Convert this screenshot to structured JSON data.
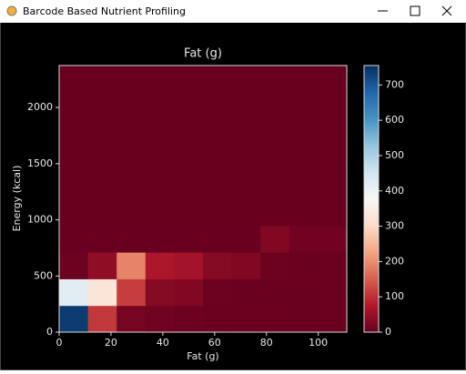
{
  "window": {
    "title": "Barcode Based Nutrient Profiling"
  },
  "chart_data": {
    "type": "heatmap",
    "title": "Fat (g)",
    "x_label": "Fat (g)",
    "y_label": "Energy (kcal)",
    "xbins": [
      0,
      11.1,
      22.2,
      33.3,
      44.4,
      55.5,
      66.6,
      77.7,
      88.8,
      99.9,
      111
    ],
    "ybins": [
      0,
      237.4,
      474.8,
      712.2,
      949.6,
      1187,
      1424.4,
      1661.8,
      1899.2,
      2136.6,
      2374
    ],
    "z": [
      [
        740,
        110,
        15,
        8,
        5,
        3,
        3,
        3,
        2,
        2
      ],
      [
        420,
        330,
        115,
        30,
        25,
        5,
        3,
        2,
        2,
        2
      ],
      [
        5,
        40,
        190,
        70,
        60,
        30,
        25,
        5,
        3,
        2
      ],
      [
        1,
        1,
        1,
        1,
        1,
        1,
        1,
        25,
        10,
        10
      ],
      [
        0,
        0,
        0,
        0,
        0,
        0,
        0,
        0,
        0,
        0
      ],
      [
        0,
        0,
        0,
        0,
        0,
        0,
        0,
        0,
        0,
        0
      ],
      [
        0,
        0,
        0,
        0,
        0,
        0,
        0,
        0,
        0,
        0
      ],
      [
        0,
        0,
        0,
        0,
        0,
        0,
        0,
        0,
        0,
        0
      ],
      [
        0,
        0,
        0,
        0,
        0,
        0,
        0,
        0,
        0,
        0
      ],
      [
        0,
        0,
        0,
        0,
        0,
        0,
        0,
        0,
        0,
        0
      ]
    ],
    "xlim": [
      0,
      111
    ],
    "ylim": [
      0,
      2374
    ],
    "xticks": [
      0,
      20,
      40,
      60,
      80,
      100
    ],
    "yticks": [
      0,
      500,
      1000,
      1500,
      2000
    ],
    "colormap": [
      "#67001f",
      "#b2182b",
      "#d6604d",
      "#f4a582",
      "#fddbc7",
      "#f7f7f7",
      "#d1e5f0",
      "#92c5de",
      "#4393c3",
      "#2166ac",
      "#053061"
    ],
    "clim": [
      0,
      755
    ],
    "cticks": [
      0,
      100,
      200,
      300,
      400,
      500,
      600,
      700
    ]
  }
}
